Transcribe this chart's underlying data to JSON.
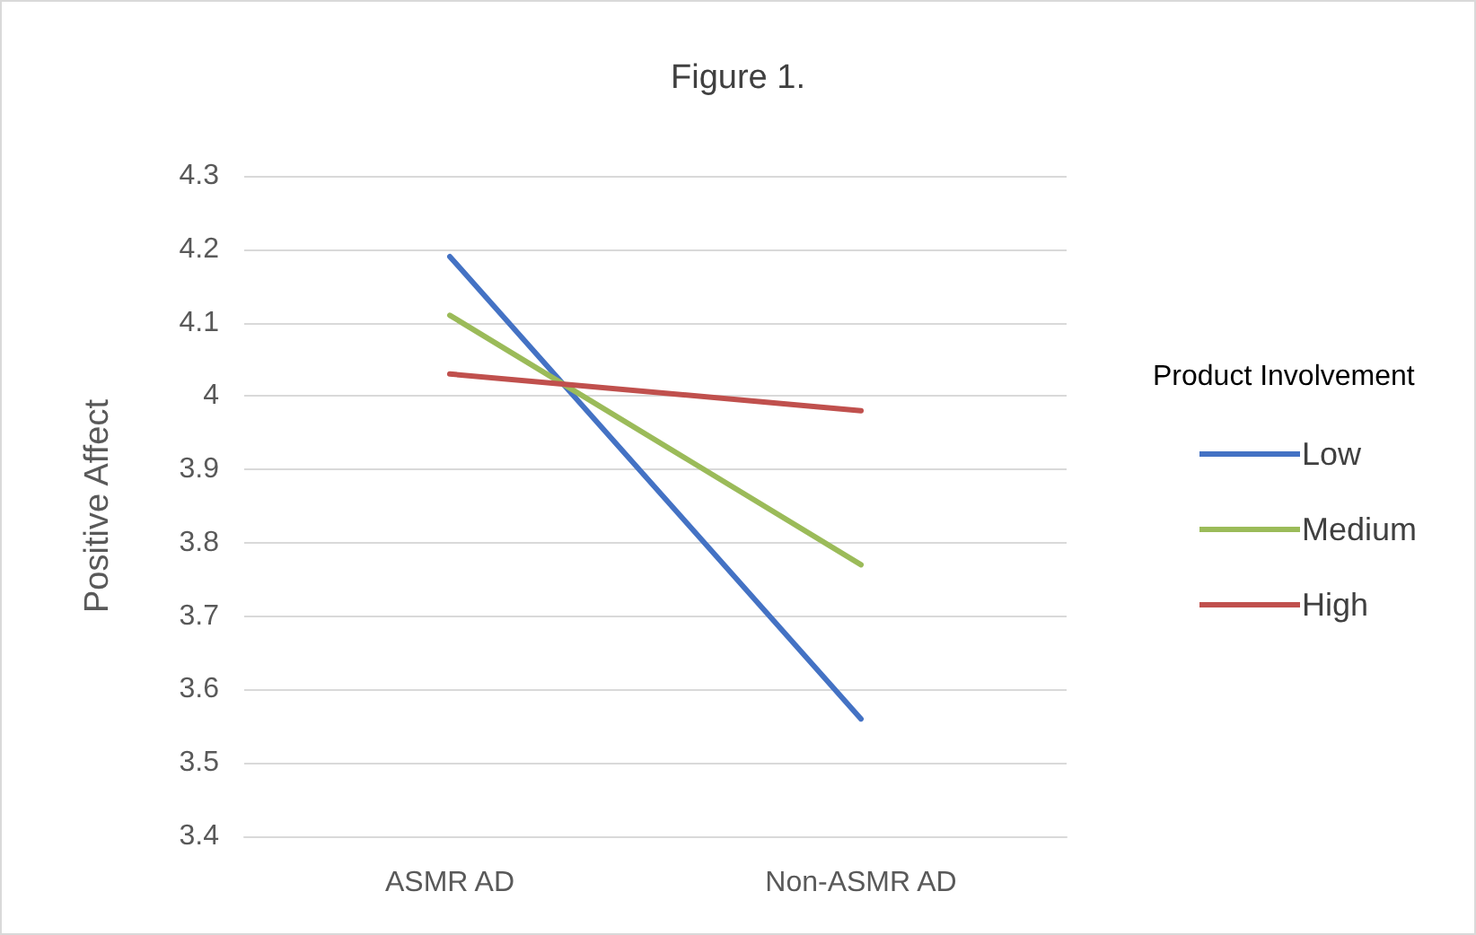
{
  "chart_data": {
    "type": "line",
    "title": "Figure 1.",
    "ylabel": "Positive Affect",
    "legend_title": "Product Involvement",
    "categories": [
      "ASMR AD",
      "Non-ASMR AD"
    ],
    "series": [
      {
        "name": "Low",
        "color": "#4472c4",
        "values": [
          4.19,
          3.56
        ]
      },
      {
        "name": "Medium",
        "color": "#9bbb59",
        "values": [
          4.11,
          3.77
        ]
      },
      {
        "name": "High",
        "color": "#c0504d",
        "values": [
          4.03,
          3.98
        ]
      }
    ],
    "ylim": [
      3.4,
      4.3
    ],
    "yticks": [
      3.4,
      3.5,
      3.6,
      3.7,
      3.8,
      3.9,
      4,
      4.1,
      4.2,
      4.3
    ],
    "grid": "y",
    "legend": "right",
    "marker": "none",
    "line_style": "solid"
  }
}
